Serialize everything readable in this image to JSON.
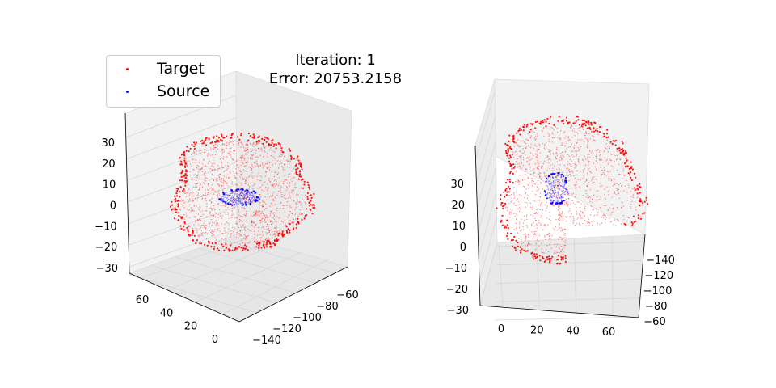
{
  "title_line1": "Iteration: 1",
  "title_line2": "Error: 20753.2158",
  "legend": {
    "target_label": "Target",
    "source_label": "Source",
    "target_color": "#ff0000",
    "source_color": "#0000ff"
  },
  "chart_data": [
    {
      "type": "scatter",
      "projection": "3d",
      "title": "",
      "series": [
        {
          "name": "Target",
          "color": "#ff0000",
          "shape": "irregular-shell"
        },
        {
          "name": "Source",
          "color": "#0000ff",
          "shape": "small-compact-cluster"
        }
      ],
      "x_ticks": [
        "−140",
        "−120",
        "−100",
        "−80",
        "−60"
      ],
      "y_ticks": [
        "0",
        "20",
        "40",
        "60"
      ],
      "z_ticks": [
        "−30",
        "−20",
        "−10",
        "0",
        "10",
        "20",
        "30"
      ],
      "xlim": [
        -150,
        -50
      ],
      "ylim": [
        -5,
        75
      ],
      "zlim": [
        -32,
        38
      ],
      "grid": true,
      "legend_position": "top-left"
    },
    {
      "type": "scatter",
      "projection": "3d",
      "title": "",
      "series": [
        {
          "name": "Target",
          "color": "#ff0000",
          "shape": "irregular-shell"
        },
        {
          "name": "Source",
          "color": "#0000ff",
          "shape": "small-compact-cluster"
        }
      ],
      "x_ticks": [
        "−140",
        "−120",
        "−100",
        "−80",
        "−60"
      ],
      "y_ticks": [
        "0",
        "20",
        "40",
        "60"
      ],
      "z_ticks": [
        "−30",
        "−20",
        "−10",
        "0",
        "10",
        "20",
        "30"
      ],
      "xlim": [
        -150,
        -50
      ],
      "ylim": [
        -5,
        75
      ],
      "zlim": [
        -32,
        38
      ],
      "grid": true
    }
  ]
}
